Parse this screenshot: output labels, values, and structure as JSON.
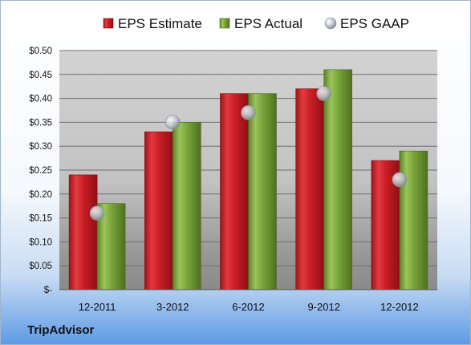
{
  "chart_data": {
    "type": "bar",
    "categories": [
      "12-2011",
      "3-2012",
      "6-2012",
      "9-2012",
      "12-2012"
    ],
    "series": [
      {
        "name": "EPS Estimate",
        "kind": "bar",
        "color": "#cc1f26",
        "values": [
          0.24,
          0.33,
          0.41,
          0.42,
          0.27
        ]
      },
      {
        "name": "EPS Actual",
        "kind": "bar",
        "color": "#7aa63a",
        "values": [
          0.18,
          0.35,
          0.41,
          0.46,
          0.29
        ]
      },
      {
        "name": "EPS GAAP",
        "kind": "marker",
        "color": "#c4c8cf",
        "values": [
          0.16,
          0.35,
          0.37,
          0.41,
          0.23
        ]
      }
    ],
    "y_ticks": [
      "$-",
      "$0.05",
      "$0.10",
      "$0.15",
      "$0.20",
      "$0.25",
      "$0.30",
      "$0.35",
      "$0.40",
      "$0.45",
      "$0.50"
    ],
    "ylim": [
      0,
      0.5
    ],
    "grid": true,
    "legend_position": "top"
  },
  "footer": {
    "company": "TripAdvisor"
  }
}
